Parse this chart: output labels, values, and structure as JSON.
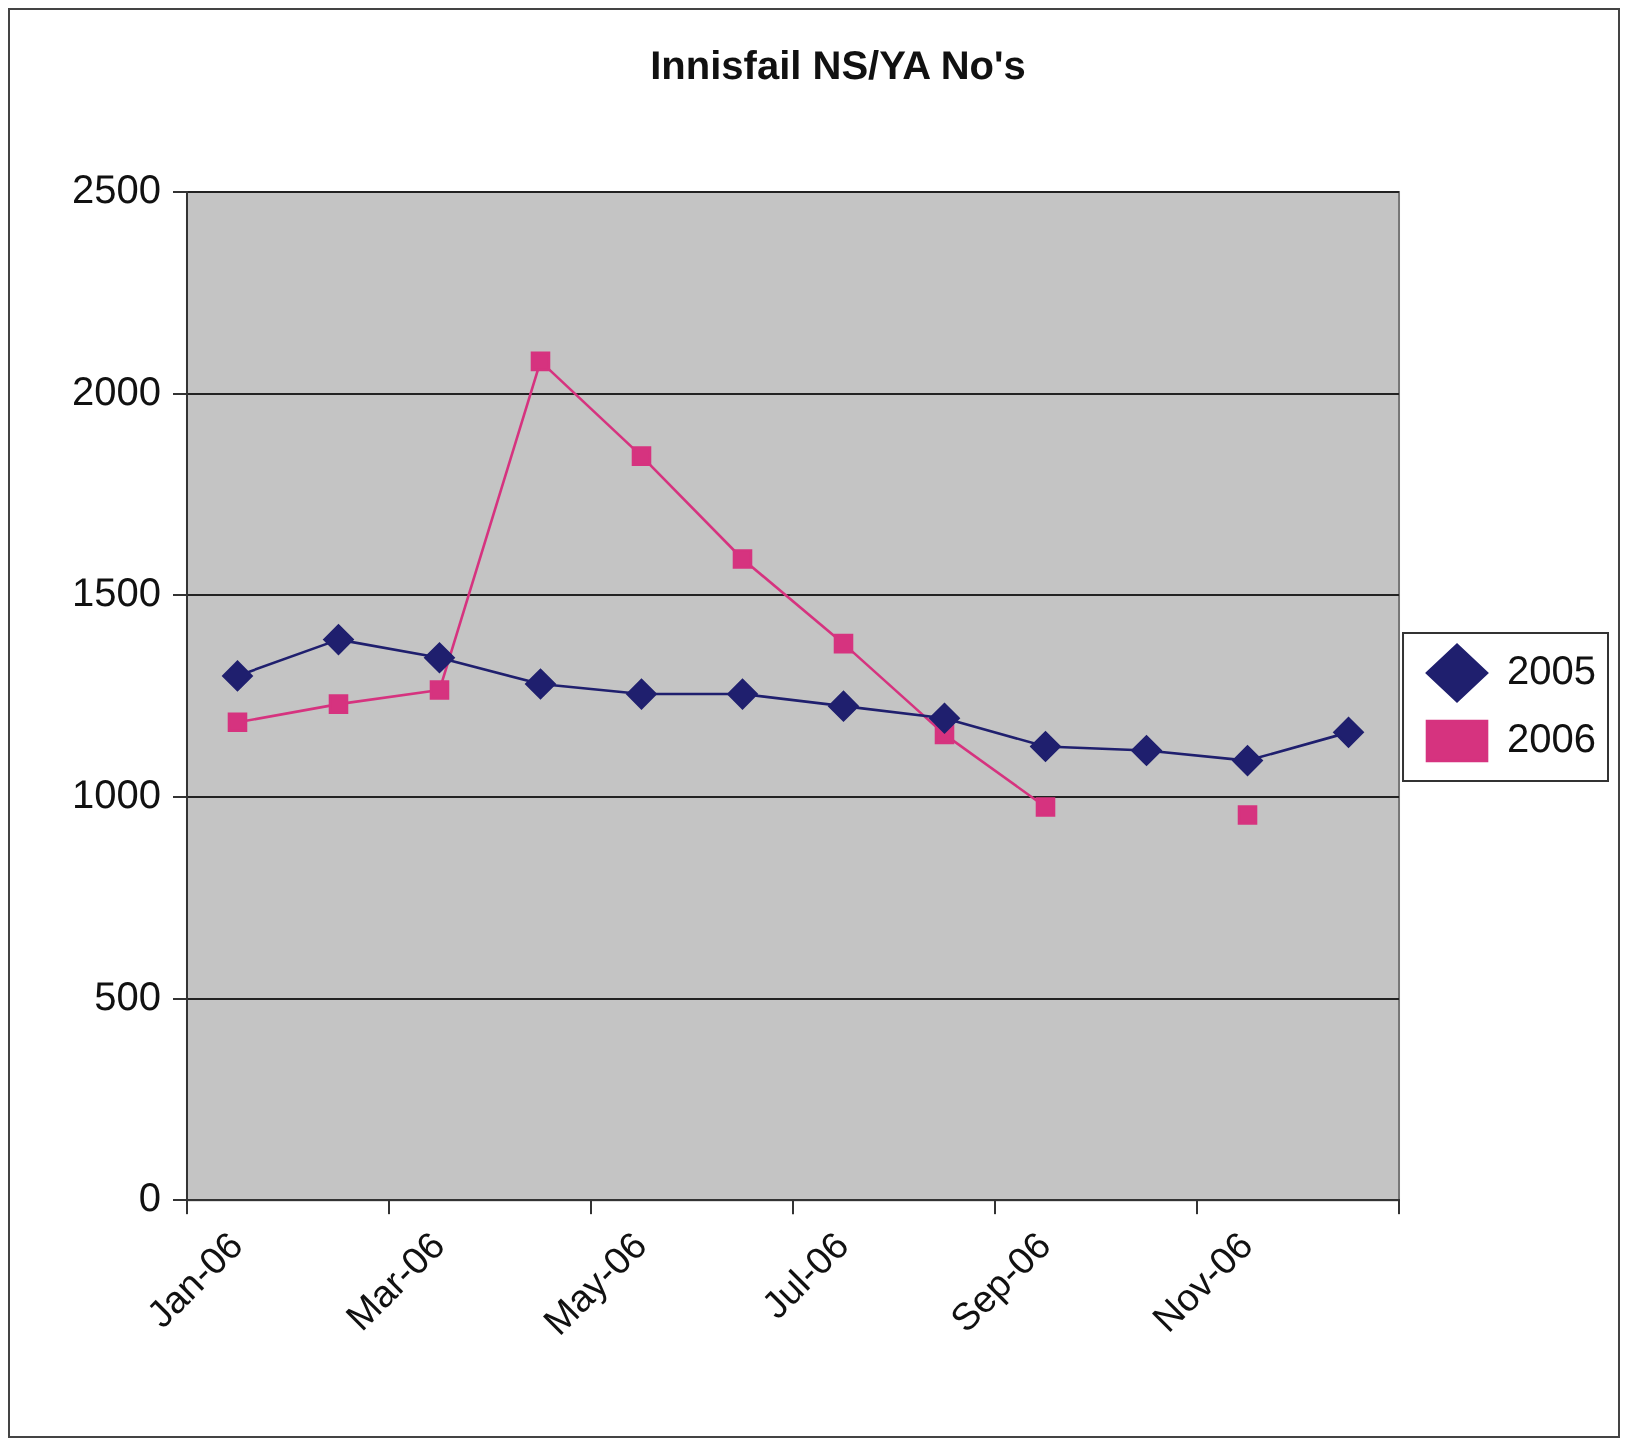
{
  "chart_data": {
    "type": "line",
    "title": "Innisfail NS/YA No's",
    "categories": [
      "Jan-06",
      null,
      "Mar-06",
      null,
      "May-06",
      null,
      "Jul-06",
      null,
      "Sep-06",
      null,
      "Nov-06",
      null
    ],
    "series": [
      {
        "name": "2005",
        "color": "#1f1f6e",
        "marker": "diamond",
        "values": [
          1300,
          1390,
          1345,
          1280,
          1255,
          1255,
          1225,
          1195,
          1125,
          1115,
          1090,
          1160
        ]
      },
      {
        "name": "2006",
        "color": "#d6337f",
        "marker": "square",
        "values": [
          1185,
          1230,
          1265,
          2080,
          1845,
          1590,
          1380,
          1155,
          975,
          null,
          955,
          null
        ]
      }
    ],
    "ylim": [
      0,
      2500
    ],
    "yticks": [
      0,
      500,
      1000,
      1500,
      2000,
      2500
    ],
    "grid": "y",
    "legend": "right",
    "line_style": "solid"
  }
}
